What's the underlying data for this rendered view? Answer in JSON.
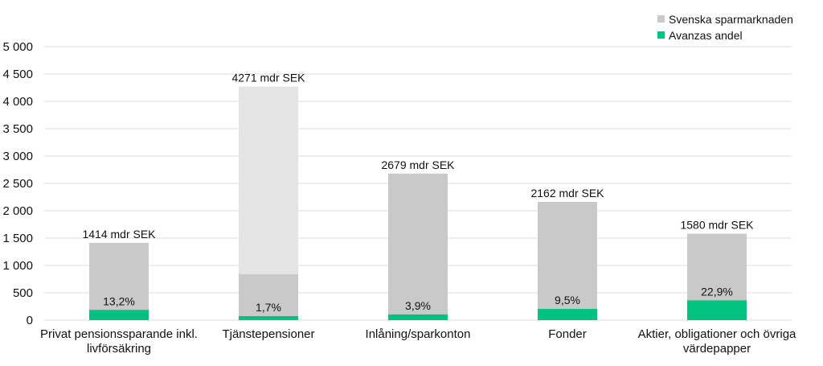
{
  "colors": {
    "market": "#c9c9c9",
    "market_light": "#e4e4e4",
    "avanza": "#00c281",
    "grid": "#dedede",
    "text": "#111111"
  },
  "legend": {
    "position": "top-right",
    "items": [
      {
        "label": "Svenska sparmarknaden",
        "color": "#c9c9c9"
      },
      {
        "label": "Avanzas andel",
        "color": "#00c281"
      }
    ]
  },
  "chart_data": {
    "type": "bar",
    "stacked": true,
    "title": "",
    "xlabel": "",
    "ylabel": "",
    "ylim": [
      0,
      5000
    ],
    "yticks": [
      0,
      500,
      1000,
      1500,
      2000,
      2500,
      3000,
      3500,
      4000,
      4500,
      5000
    ],
    "ytick_labels": [
      "0",
      "500",
      "1 000",
      "1 500",
      "2 000",
      "2 500",
      "3 000",
      "3 500",
      "4 000",
      "4 500",
      "5 000"
    ],
    "grid": true,
    "categories": [
      [
        "Privat pensionssparande inkl.",
        "livförsäkring"
      ],
      [
        "Tjänstepensioner"
      ],
      [
        "Inlåning/sparkonton"
      ],
      [
        "Fonder"
      ],
      [
        "Aktier, obligationer och övriga",
        "värdepapper"
      ]
    ],
    "series": [
      {
        "name": "Svenska sparmarknaden",
        "values": [
          1414,
          4271,
          2679,
          2162,
          1580
        ],
        "total_labels": [
          "1414 mdr SEK",
          "4271 mdr SEK",
          "2679 mdr SEK",
          "2162 mdr SEK",
          "1580 mdr SEK"
        ]
      },
      {
        "name": "Avanzas andel",
        "values": [
          187,
          73,
          104,
          205,
          362
        ],
        "share_labels": [
          "13,2%",
          "1,7%",
          "3,9%",
          "9,5%",
          "22,9%"
        ]
      }
    ],
    "partial_segment": {
      "category_index": 1,
      "value": 840
    }
  }
}
